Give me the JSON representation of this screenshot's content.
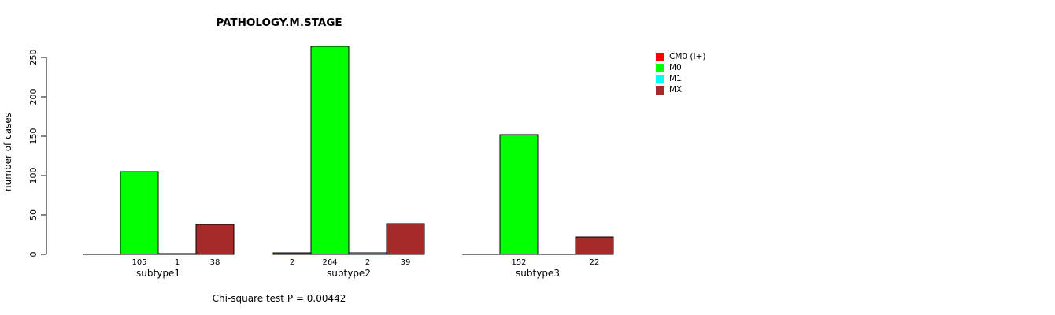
{
  "chart_data": {
    "type": "bar",
    "title": "PATHOLOGY.M.STAGE",
    "ylabel": "number of cases",
    "xlabel": "",
    "categories": [
      "subtype1",
      "subtype2",
      "subtype3"
    ],
    "series": [
      {
        "name": "CM0 (I+)",
        "color": "#FF0000",
        "values": [
          0,
          2,
          0
        ]
      },
      {
        "name": "M0",
        "color": "#00FF00",
        "values": [
          105,
          264,
          152
        ]
      },
      {
        "name": "M1",
        "color": "#00FFFF",
        "values": [
          1,
          2,
          0
        ]
      },
      {
        "name": "MX",
        "color": "#A52A2A",
        "values": [
          38,
          39,
          22
        ]
      }
    ],
    "bar_value_labels": {
      "subtype1": {
        "CM0 (I+)": null,
        "M0": "105",
        "M1": "1",
        "MX": "38"
      },
      "subtype2": {
        "CM0 (I+)": "2",
        "M0": "264",
        "M1": "2",
        "MX": "39"
      },
      "subtype3": {
        "CM0 (I+)": null,
        "M0": "152",
        "M1": null,
        "MX": "22"
      }
    },
    "ylim": [
      0,
      250
    ],
    "yticks": [
      0,
      50,
      100,
      150,
      200,
      250
    ],
    "grid": false,
    "legend_position": "top-right",
    "annotation": "Chi-square test P = 0.00442"
  }
}
